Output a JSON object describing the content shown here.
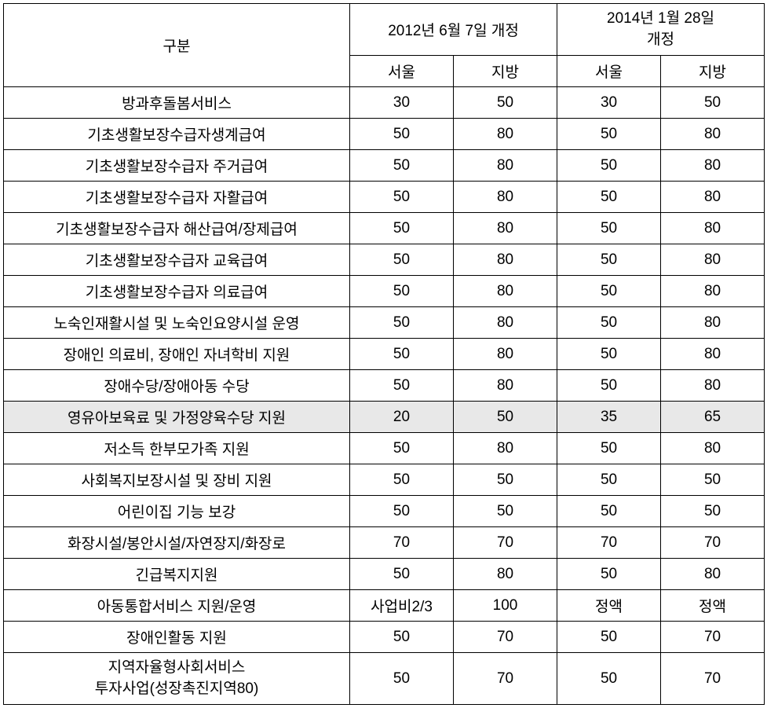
{
  "table": {
    "headers": {
      "category": "구분",
      "period1": "2012년 6월 7일 개정",
      "period2": "2014년 1월 28일\n개정",
      "sub_seoul": "서울",
      "sub_region": "지방"
    },
    "rows": [
      {
        "name": "방과후돌봄서비스",
        "p1_seoul": "30",
        "p1_region": "50",
        "p2_seoul": "30",
        "p2_region": "50",
        "highlighted": false
      },
      {
        "name": "기초생활보장수급자생계급여",
        "p1_seoul": "50",
        "p1_region": "80",
        "p2_seoul": "50",
        "p2_region": "80",
        "highlighted": false
      },
      {
        "name": "기초생활보장수급자 주거급여",
        "p1_seoul": "50",
        "p1_region": "80",
        "p2_seoul": "50",
        "p2_region": "80",
        "highlighted": false
      },
      {
        "name": "기초생활보장수급자 자활급여",
        "p1_seoul": "50",
        "p1_region": "80",
        "p2_seoul": "50",
        "p2_region": "80",
        "highlighted": false
      },
      {
        "name": "기초생활보장수급자 해산급여/장제급여",
        "p1_seoul": "50",
        "p1_region": "80",
        "p2_seoul": "50",
        "p2_region": "80",
        "highlighted": false
      },
      {
        "name": "기초생활보장수급자 교육급여",
        "p1_seoul": "50",
        "p1_region": "80",
        "p2_seoul": "50",
        "p2_region": "80",
        "highlighted": false
      },
      {
        "name": "기초생활보장수급자 의료급여",
        "p1_seoul": "50",
        "p1_region": "80",
        "p2_seoul": "50",
        "p2_region": "80",
        "highlighted": false
      },
      {
        "name": "노숙인재활시설 및 노숙인요양시설 운영",
        "p1_seoul": "50",
        "p1_region": "80",
        "p2_seoul": "50",
        "p2_region": "80",
        "highlighted": false
      },
      {
        "name": "장애인 의료비, 장애인 자녀학비 지원",
        "p1_seoul": "50",
        "p1_region": "80",
        "p2_seoul": "50",
        "p2_region": "80",
        "highlighted": false
      },
      {
        "name": "장애수당/장애아동 수당",
        "p1_seoul": "50",
        "p1_region": "80",
        "p2_seoul": "50",
        "p2_region": "80",
        "highlighted": false
      },
      {
        "name": "영유아보육료 및 가정양육수당 지원",
        "p1_seoul": "20",
        "p1_region": "50",
        "p2_seoul": "35",
        "p2_region": "65",
        "highlighted": true
      },
      {
        "name": "저소득 한부모가족 지원",
        "p1_seoul": "50",
        "p1_region": "80",
        "p2_seoul": "50",
        "p2_region": "80",
        "highlighted": false
      },
      {
        "name": "사회복지보장시설 및 장비 지원",
        "p1_seoul": "50",
        "p1_region": "50",
        "p2_seoul": "50",
        "p2_region": "50",
        "highlighted": false
      },
      {
        "name": "어린이집 기능 보강",
        "p1_seoul": "50",
        "p1_region": "50",
        "p2_seoul": "50",
        "p2_region": "50",
        "highlighted": false
      },
      {
        "name": "화장시설/봉안시설/자연장지/화장로",
        "p1_seoul": "70",
        "p1_region": "70",
        "p2_seoul": "70",
        "p2_region": "70",
        "highlighted": false
      },
      {
        "name": "긴급복지지원",
        "p1_seoul": "50",
        "p1_region": "80",
        "p2_seoul": "50",
        "p2_region": "80",
        "highlighted": false
      },
      {
        "name": "아동통합서비스 지원/운영",
        "p1_seoul": "사업비2/3",
        "p1_region": "100",
        "p2_seoul": "정액",
        "p2_region": "정액",
        "highlighted": false
      },
      {
        "name": "장애인활동 지원",
        "p1_seoul": "50",
        "p1_region": "70",
        "p2_seoul": "50",
        "p2_region": "70",
        "highlighted": false
      },
      {
        "name": "지역자율형사회서비스\n투자사업(성장촉진지역80)",
        "p1_seoul": "50",
        "p1_region": "70",
        "p2_seoul": "50",
        "p2_region": "70",
        "highlighted": false
      }
    ],
    "styling": {
      "border_color": "#000000",
      "background_color": "#ffffff",
      "highlight_color": "#e8e8e8",
      "font_size": 19,
      "font_family": "Malgun Gothic",
      "cell_padding": 6,
      "col_widths": {
        "category": 441,
        "value": 132
      }
    }
  }
}
